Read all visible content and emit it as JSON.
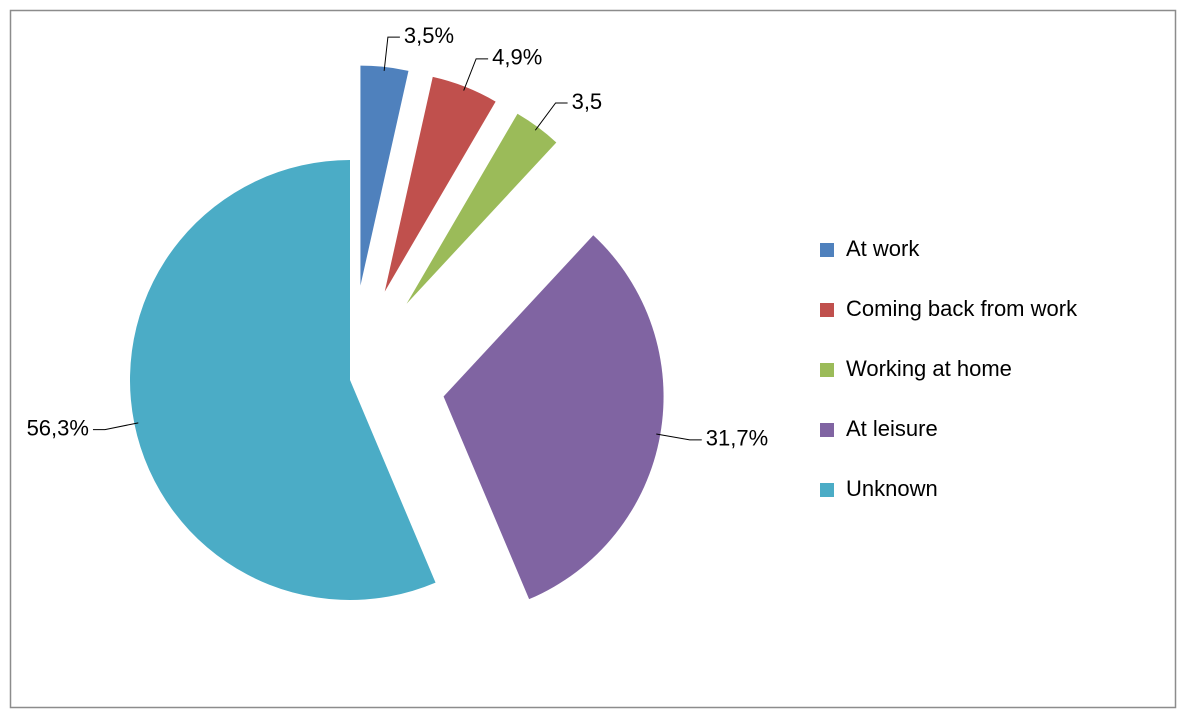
{
  "chart_data": {
    "type": "pie",
    "categories": [
      "At work",
      "Coming back from work",
      "Working at home",
      "At leisure",
      "Unknown"
    ],
    "values": [
      3.5,
      4.9,
      3.5,
      31.7,
      56.3
    ],
    "value_labels": [
      "3,5%",
      "4,9%",
      "3,5",
      "31,7%",
      "56,3%"
    ],
    "colors": [
      "#4f81bd",
      "#c0504d",
      "#9bbb59",
      "#8064a2",
      "#4bacc6"
    ],
    "legend": "right"
  }
}
